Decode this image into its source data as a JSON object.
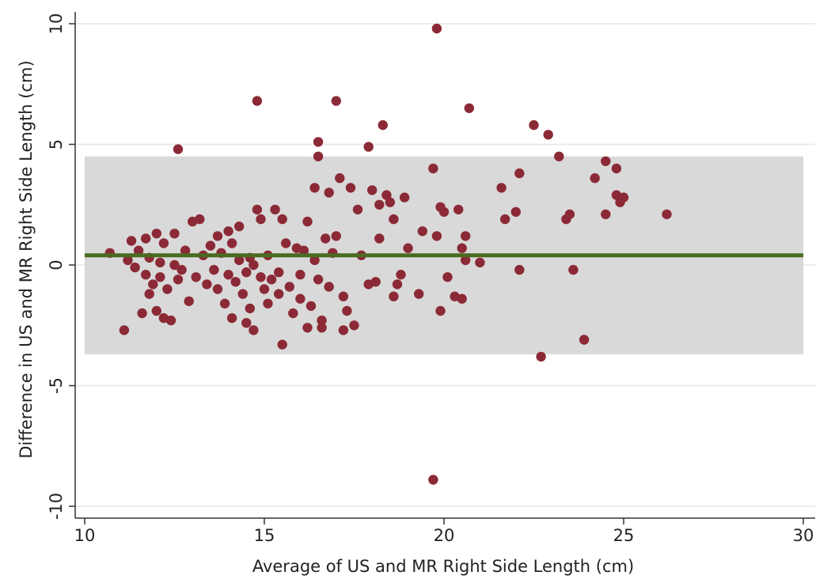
{
  "chart_data": {
    "type": "scatter",
    "xlabel": "Average of US and MR Right Side Length (cm)",
    "ylabel": "Difference in US and MR Right Side Length (cm)",
    "xlim": [
      10,
      30
    ],
    "ylim": [
      -10,
      10
    ],
    "xticks": [
      10,
      15,
      20,
      25,
      30
    ],
    "yticks": [
      -10,
      -5,
      0,
      5,
      10
    ],
    "grid": "horizontal",
    "mean_difference": 0.4,
    "limits_of_agreement": [
      -3.7,
      4.5
    ],
    "colors": {
      "points": "#8b2a36",
      "mean_line": "#4a6b22",
      "agreement_band": "#d9d9d9",
      "gridline": "#e6e6e6",
      "axis": "#333333"
    },
    "series": [
      {
        "points": [
          [
            10.7,
            0.5
          ],
          [
            11.1,
            -2.7
          ],
          [
            11.2,
            0.2
          ],
          [
            11.3,
            1.0
          ],
          [
            11.4,
            -0.1
          ],
          [
            11.5,
            0.6
          ],
          [
            11.6,
            -2.0
          ],
          [
            11.7,
            1.1
          ],
          [
            11.7,
            -0.4
          ],
          [
            11.8,
            0.3
          ],
          [
            11.8,
            -1.2
          ],
          [
            11.9,
            -0.8
          ],
          [
            12.0,
            1.3
          ],
          [
            12.0,
            -1.9
          ],
          [
            12.1,
            0.1
          ],
          [
            12.1,
            -0.5
          ],
          [
            12.2,
            0.9
          ],
          [
            12.2,
            -2.2
          ],
          [
            12.3,
            -1.0
          ],
          [
            12.4,
            -2.3
          ],
          [
            12.5,
            0.0
          ],
          [
            12.5,
            1.3
          ],
          [
            12.6,
            -0.6
          ],
          [
            12.6,
            4.8
          ],
          [
            12.7,
            -0.2
          ],
          [
            12.8,
            0.6
          ],
          [
            12.9,
            -1.5
          ],
          [
            13.0,
            1.8
          ],
          [
            13.1,
            -0.5
          ],
          [
            13.2,
            1.9
          ],
          [
            13.3,
            0.4
          ],
          [
            13.4,
            -0.8
          ],
          [
            13.5,
            0.8
          ],
          [
            13.6,
            -0.2
          ],
          [
            13.7,
            1.2
          ],
          [
            13.7,
            -1.0
          ],
          [
            13.8,
            0.5
          ],
          [
            13.9,
            -1.6
          ],
          [
            14.0,
            1.4
          ],
          [
            14.0,
            -0.4
          ],
          [
            14.1,
            0.9
          ],
          [
            14.1,
            -2.2
          ],
          [
            14.2,
            -0.7
          ],
          [
            14.3,
            1.6
          ],
          [
            14.3,
            0.2
          ],
          [
            14.4,
            -1.2
          ],
          [
            14.5,
            -0.3
          ],
          [
            14.5,
            -2.4
          ],
          [
            14.6,
            0.3
          ],
          [
            14.6,
            -1.8
          ],
          [
            14.7,
            0.0
          ],
          [
            14.7,
            -2.7
          ],
          [
            14.8,
            6.8
          ],
          [
            14.8,
            2.3
          ],
          [
            14.9,
            -0.5
          ],
          [
            14.9,
            1.9
          ],
          [
            15.0,
            -1.0
          ],
          [
            15.1,
            0.4
          ],
          [
            15.1,
            -1.6
          ],
          [
            15.2,
            -0.6
          ],
          [
            15.3,
            2.3
          ],
          [
            15.4,
            -0.3
          ],
          [
            15.4,
            -1.2
          ],
          [
            15.5,
            1.9
          ],
          [
            15.5,
            -3.3
          ],
          [
            15.6,
            0.9
          ],
          [
            15.7,
            -0.9
          ],
          [
            15.8,
            -2.0
          ],
          [
            15.9,
            0.7
          ],
          [
            16.0,
            -0.4
          ],
          [
            16.0,
            -1.4
          ],
          [
            16.1,
            0.6
          ],
          [
            16.2,
            1.8
          ],
          [
            16.2,
            -2.6
          ],
          [
            16.3,
            -1.7
          ],
          [
            16.4,
            3.2
          ],
          [
            16.4,
            0.2
          ],
          [
            16.5,
            -0.6
          ],
          [
            16.5,
            5.1
          ],
          [
            16.5,
            4.5
          ],
          [
            16.6,
            -2.3
          ],
          [
            16.6,
            -2.6
          ],
          [
            16.7,
            1.1
          ],
          [
            16.8,
            -0.9
          ],
          [
            16.8,
            3.0
          ],
          [
            16.9,
            0.5
          ],
          [
            17.0,
            6.8
          ],
          [
            17.0,
            1.2
          ],
          [
            17.1,
            3.6
          ],
          [
            17.2,
            -1.3
          ],
          [
            17.2,
            -2.7
          ],
          [
            17.3,
            -1.9
          ],
          [
            17.4,
            3.2
          ],
          [
            17.5,
            -2.5
          ],
          [
            17.6,
            2.3
          ],
          [
            17.7,
            0.4
          ],
          [
            17.9,
            -0.8
          ],
          [
            17.9,
            4.9
          ],
          [
            18.0,
            3.1
          ],
          [
            18.1,
            -0.7
          ],
          [
            18.2,
            2.5
          ],
          [
            18.2,
            1.1
          ],
          [
            18.3,
            5.8
          ],
          [
            18.4,
            2.9
          ],
          [
            18.5,
            2.6
          ],
          [
            18.6,
            1.9
          ],
          [
            18.6,
            -1.3
          ],
          [
            18.7,
            -0.8
          ],
          [
            18.8,
            -0.4
          ],
          [
            18.9,
            2.8
          ],
          [
            19.0,
            0.7
          ],
          [
            19.3,
            -1.2
          ],
          [
            19.4,
            1.4
          ],
          [
            19.7,
            4.0
          ],
          [
            19.7,
            -8.9
          ],
          [
            19.8,
            9.8
          ],
          [
            19.8,
            1.2
          ],
          [
            19.9,
            2.4
          ],
          [
            19.9,
            -1.9
          ],
          [
            20.0,
            2.2
          ],
          [
            20.1,
            -0.5
          ],
          [
            20.3,
            -1.3
          ],
          [
            20.4,
            2.3
          ],
          [
            20.5,
            0.7
          ],
          [
            20.5,
            -1.4
          ],
          [
            20.6,
            0.2
          ],
          [
            20.6,
            1.2
          ],
          [
            20.7,
            6.5
          ],
          [
            21.0,
            0.1
          ],
          [
            21.6,
            3.2
          ],
          [
            21.7,
            1.9
          ],
          [
            22.0,
            2.2
          ],
          [
            22.1,
            3.8
          ],
          [
            22.1,
            -0.2
          ],
          [
            22.5,
            5.8
          ],
          [
            22.7,
            -3.8
          ],
          [
            22.9,
            5.4
          ],
          [
            23.2,
            4.5
          ],
          [
            23.4,
            1.9
          ],
          [
            23.5,
            2.1
          ],
          [
            23.6,
            -0.2
          ],
          [
            23.9,
            -3.1
          ],
          [
            24.2,
            3.6
          ],
          [
            24.5,
            2.1
          ],
          [
            24.5,
            4.3
          ],
          [
            24.8,
            4.0
          ],
          [
            24.8,
            2.9
          ],
          [
            24.9,
            2.6
          ],
          [
            25.0,
            2.8
          ],
          [
            26.2,
            2.1
          ]
        ]
      }
    ]
  }
}
